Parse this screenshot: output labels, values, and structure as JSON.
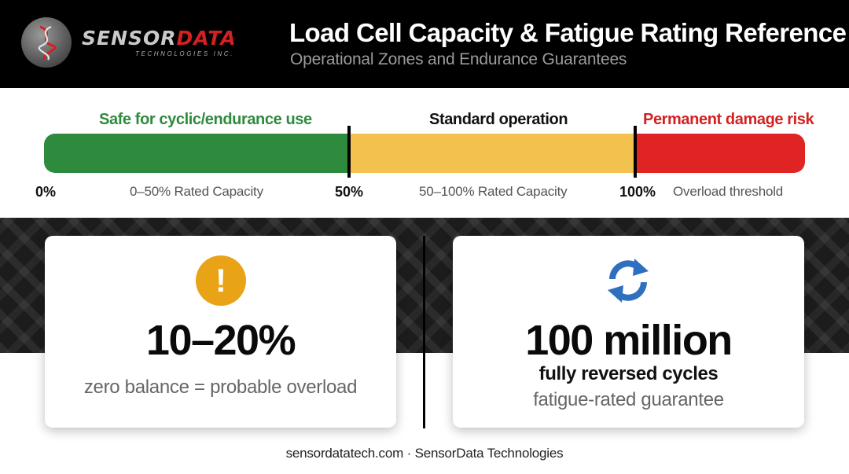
{
  "header": {
    "logo": {
      "word_part1": "SENSOR",
      "word_part2": "DATA",
      "tagline": "TECHNOLOGIES INC."
    },
    "title": "Load Cell Capacity & Fatigue Rating Reference",
    "subtitle": "Operational Zones and Endurance Guarantees"
  },
  "zones": {
    "items": [
      {
        "label": "Safe for cyclic/endurance use",
        "range_text": "0–50% Rated Capacity",
        "start_pct": 0,
        "end_pct": 50,
        "color": "#2e8b3e"
      },
      {
        "label": "Standard operation",
        "range_text": "50–100% Rated Capacity",
        "start_pct": 50,
        "end_pct": 100,
        "color": "#f2c14e"
      },
      {
        "label": "Permanent damage risk",
        "range_text": "Overload threshold",
        "start_pct": 100,
        "color": "#e02424"
      }
    ],
    "ticks": [
      "0%",
      "50%",
      "100%"
    ]
  },
  "cards": {
    "left": {
      "icon": "exclamation-circle-icon",
      "icon_color": "#e9a317",
      "value": "10–20%",
      "caption": "zero balance = probable overload"
    },
    "right": {
      "icon": "refresh-cycle-icon",
      "icon_color": "#2f6fbf",
      "value": "100 million",
      "caption_bold": "fully reversed cycles",
      "caption": "fatigue-rated guarantee"
    }
  },
  "footer": {
    "site": "sensordatatech.com",
    "separator": "·",
    "company": "SensorData Technologies"
  }
}
